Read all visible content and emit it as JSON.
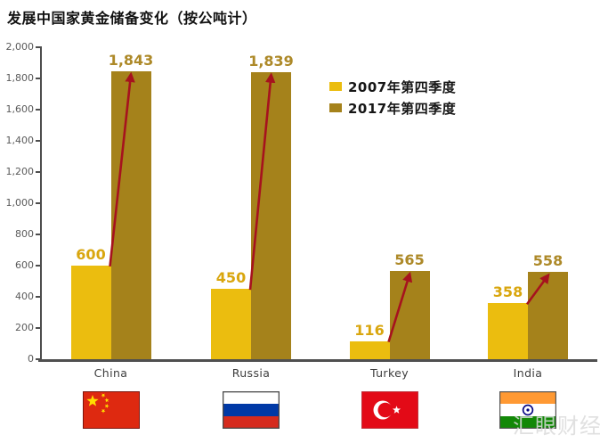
{
  "title": "发展中国家黄金储备变化（按公吨计）",
  "watermark": "汇眼财经",
  "legend": [
    {
      "label": "2007年第四季度",
      "color": "#EBBD0F"
    },
    {
      "label": "2017年第四季度",
      "color": "#A5821B"
    }
  ],
  "chart_data": {
    "type": "bar",
    "title": "发展中国家黄金储备变化（按公吨计）",
    "categories": [
      "China",
      "Russia",
      "Turkey",
      "India"
    ],
    "series": [
      {
        "name": "2007年第四季度",
        "color": "#EBBD0F",
        "label_color": "#D9A60E",
        "values": [
          600,
          450,
          116,
          358
        ],
        "value_labels": [
          "600",
          "450",
          "116",
          "358"
        ]
      },
      {
        "name": "2017年第四季度",
        "color": "#A5821B",
        "label_color": "#AD8928",
        "values": [
          1843,
          1839,
          565,
          558
        ],
        "value_labels": [
          "1,843",
          "1,839",
          "565",
          "558"
        ]
      }
    ],
    "ylim": [
      0,
      2000
    ],
    "ytick_step": 200,
    "yticks": [
      "0",
      "200",
      "400",
      "600",
      "800",
      "1,000",
      "1,200",
      "1,400",
      "1,600",
      "1,800",
      "2,000"
    ],
    "grid": false,
    "legend_position": "top-center-right",
    "annotation_arrows": {
      "description": "dark-red arrow from top of each 2007 bar to top of each 2017 bar",
      "color": "#A6121E"
    },
    "flags": [
      "china",
      "russia",
      "turkey",
      "india"
    ],
    "flag_colors": {
      "china_red": "#DE2910",
      "china_star": "#FFDE00",
      "russia_white": "#FFFFFF",
      "russia_blue": "#0039A6",
      "russia_red": "#D52B1E",
      "turkey_red": "#E30A17",
      "turkey_white": "#FFFFFF",
      "india_saffron": "#FF9933",
      "india_white": "#FFFFFF",
      "india_green": "#128807",
      "india_navy": "#000080"
    }
  }
}
